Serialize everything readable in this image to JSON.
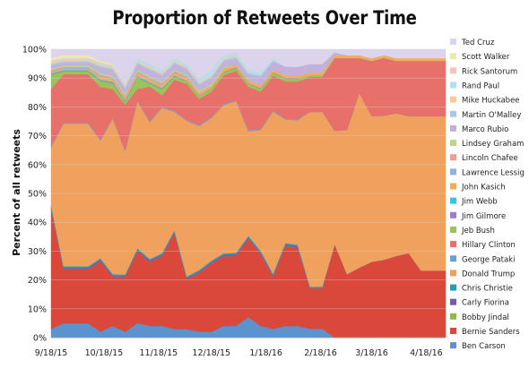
{
  "chart_data": {
    "type": "area",
    "stacked": true,
    "title": "Proportion of Retweets Over Time",
    "ylabel": "Percent of all retweets",
    "xlabel": "",
    "ylim": [
      0,
      100
    ],
    "y_ticks": [
      "0%",
      "10%",
      "20%",
      "30%",
      "40%",
      "50%",
      "60%",
      "70%",
      "80%",
      "90%",
      "100%"
    ],
    "x_ticks": [
      {
        "label": "9/18/15",
        "t": 0
      },
      {
        "label": "10/18/15",
        "t": 30
      },
      {
        "label": "11/18/15",
        "t": 61
      },
      {
        "label": "12/18/15",
        "t": 91
      },
      {
        "label": "1/18/16",
        "t": 122
      },
      {
        "label": "2/18/16",
        "t": 153
      },
      {
        "label": "3/18/16",
        "t": 182
      },
      {
        "label": "4/18/16",
        "t": 213
      }
    ],
    "grid": true,
    "legend_position": "right",
    "x": [
      0,
      7,
      14,
      21,
      28,
      35,
      42,
      49,
      56,
      63,
      70,
      77,
      84,
      91,
      98,
      105,
      112,
      119,
      126,
      133,
      140,
      147,
      154,
      161,
      168,
      175,
      182,
      189,
      196,
      203,
      210,
      217,
      224
    ],
    "series": [
      {
        "name": "Ben Carson",
        "color": "#5b93cf",
        "values": [
          3,
          5,
          5,
          5,
          2,
          4,
          2,
          5,
          4,
          4,
          3,
          3,
          2,
          2,
          4,
          4,
          7,
          4,
          3,
          4,
          4,
          3,
          3,
          0,
          0,
          0,
          0,
          0,
          0,
          0,
          0,
          0,
          0
        ]
      },
      {
        "name": "Bernie Sanders",
        "color": "#d9483b",
        "values": [
          42,
          19,
          19,
          19,
          24,
          17,
          19,
          25,
          22,
          24,
          34,
          18,
          20,
          24,
          24,
          24,
          27,
          25,
          18,
          28,
          27,
          14,
          14,
          32,
          22,
          24,
          26,
          27,
          28,
          29,
          23,
          23,
          23
        ]
      },
      {
        "name": "Bobby Jindal",
        "color": "#8fb94b",
        "values": [
          0,
          0,
          0,
          0,
          0,
          0,
          0,
          0,
          0,
          0,
          0,
          0,
          0,
          0,
          0,
          0,
          0,
          0,
          0,
          0,
          0,
          0,
          0,
          0,
          0,
          0,
          0,
          0,
          0,
          0,
          0,
          0,
          0
        ]
      },
      {
        "name": "Carly Fiorina",
        "color": "#7a5aa6",
        "values": [
          0.5,
          0.5,
          0.5,
          0.5,
          0.5,
          0.5,
          0.5,
          0.5,
          0.5,
          0.5,
          0.5,
          0.5,
          0.5,
          0.5,
          0.5,
          0.5,
          0.5,
          0.5,
          0.5,
          0.5,
          0.5,
          0,
          0,
          0,
          0,
          0,
          0,
          0,
          0,
          0,
          0,
          0,
          0
        ]
      },
      {
        "name": "Chris Christie",
        "color": "#2a9db0",
        "values": [
          0.5,
          0.5,
          0.5,
          0.5,
          0.5,
          0.5,
          0.5,
          0.5,
          0.5,
          0.5,
          0.5,
          0.5,
          0.5,
          0.5,
          0.5,
          0.5,
          0.5,
          0.5,
          0.5,
          0.5,
          0.5,
          0.5,
          0.5,
          0,
          0,
          0,
          0,
          0,
          0,
          0,
          0,
          0,
          0
        ]
      },
      {
        "name": "Donald Trump",
        "color": "#f0a15d",
        "values": [
          20,
          50,
          50,
          50,
          40,
          54,
          43,
          51,
          47,
          50,
          42,
          56,
          49,
          50,
          51,
          52,
          36,
          42,
          56,
          43,
          43,
          60,
          60,
          39,
          50,
          60,
          50,
          50,
          49,
          47,
          53,
          53,
          53
        ]
      },
      {
        "name": "George Pataki",
        "color": "#6d9fd4",
        "values": [
          0.3,
          0.3,
          0.3,
          0.3,
          0.3,
          0.3,
          0.3,
          0.3,
          0.3,
          0.3,
          0.3,
          0.3,
          0.3,
          0.3,
          0.3,
          0.3,
          0.3,
          0.3,
          0.3,
          0.3,
          0.3,
          0,
          0,
          0,
          0,
          0,
          0,
          0,
          0,
          0,
          0,
          0,
          0
        ]
      },
      {
        "name": "Hillary Clinton",
        "color": "#e8706a",
        "values": [
          20,
          17,
          17,
          17,
          18,
          10,
          16,
          4,
          12,
          4,
          11,
          13,
          9,
          9,
          10,
          10,
          15,
          13,
          12,
          13,
          13,
          12,
          12,
          25,
          25,
          12,
          19,
          20,
          18,
          19,
          19,
          19,
          19
        ]
      },
      {
        "name": "Jeb Bush",
        "color": "#9cc35a",
        "values": [
          5,
          1,
          1,
          1,
          2,
          2,
          1,
          4,
          1,
          2,
          1,
          1,
          1,
          1,
          1,
          1,
          1,
          1,
          1,
          1,
          1,
          0.5,
          0.5,
          0,
          0,
          0,
          0,
          0,
          0,
          0,
          0,
          0,
          0
        ]
      },
      {
        "name": "Jim Gilmore",
        "color": "#9a80c0",
        "values": [
          0.2,
          0.2,
          0.2,
          0.2,
          0.2,
          0.2,
          0.2,
          0.2,
          0.2,
          0.2,
          0.2,
          0.2,
          0.2,
          0.2,
          0.2,
          0.2,
          0.2,
          0.2,
          0.2,
          0.2,
          0.2,
          0,
          0,
          0,
          0,
          0,
          0,
          0,
          0,
          0,
          0,
          0,
          0
        ]
      },
      {
        "name": "Jim Webb",
        "color": "#3fc2da",
        "values": [
          0.3,
          0.3,
          0.3,
          0.3,
          0.3,
          0.3,
          0.3,
          0.3,
          0.3,
          0.3,
          0.3,
          0,
          0,
          0,
          0,
          0,
          0,
          0,
          0,
          0,
          0,
          0,
          0,
          0,
          0,
          0,
          0,
          0,
          0,
          0,
          0,
          0,
          0
        ]
      },
      {
        "name": "John Kasich",
        "color": "#f3ad5a",
        "values": [
          0.5,
          0.5,
          0.5,
          0.5,
          1,
          1,
          1,
          1,
          1,
          1,
          1,
          1,
          1,
          1,
          1,
          1,
          1,
          1,
          1,
          1,
          1,
          1,
          1,
          1,
          1,
          1,
          1,
          1,
          1,
          1,
          1,
          1,
          1
        ]
      },
      {
        "name": "Lawrence Lessig",
        "color": "#8fb3db",
        "values": [
          0.3,
          0.3,
          0.3,
          0.3,
          0.3,
          0.3,
          0.3,
          0.3,
          0.3,
          0.3,
          0.3,
          0.3,
          0,
          0,
          0,
          0,
          0,
          0,
          0,
          0,
          0,
          0,
          0,
          0,
          0,
          0,
          0,
          0,
          0,
          0,
          0,
          0,
          0
        ]
      },
      {
        "name": "Lincoln Chafee",
        "color": "#f19b98",
        "values": [
          0.3,
          0.3,
          0.3,
          0.3,
          0.3,
          0.3,
          0.3,
          0.3,
          0.3,
          0.3,
          0.3,
          0.3,
          0,
          0,
          0,
          0,
          0,
          0,
          0,
          0,
          0,
          0,
          0,
          0,
          0,
          0,
          0,
          0,
          0,
          0,
          0,
          0,
          0
        ]
      },
      {
        "name": "Lindsey Graham",
        "color": "#b8d78c",
        "values": [
          0.5,
          0.5,
          0.5,
          0.5,
          0.5,
          0.5,
          0.5,
          0.5,
          0.5,
          0.5,
          0.5,
          0.5,
          0.5,
          0.5,
          0.5,
          0,
          0,
          0,
          0,
          0,
          0,
          0,
          0,
          0,
          0,
          0,
          0,
          0,
          0,
          0,
          0,
          0,
          0
        ]
      },
      {
        "name": "Marco Rubio",
        "color": "#c2b2db",
        "values": [
          1,
          1,
          1,
          1,
          2,
          2,
          2,
          2,
          2,
          2,
          2,
          2,
          2,
          2,
          2,
          2,
          2,
          3,
          3,
          3,
          3,
          3,
          3,
          1,
          0,
          0,
          0,
          0,
          0,
          0,
          0,
          0,
          0
        ]
      },
      {
        "name": "Martin O'Malley",
        "color": "#a9c7e6",
        "values": [
          0.5,
          0.5,
          0.5,
          0.5,
          0.5,
          0.5,
          0.5,
          0.5,
          0.5,
          0.5,
          0.5,
          0.5,
          0.5,
          0.5,
          0.5,
          0.5,
          0.5,
          0.5,
          0,
          0,
          0,
          0,
          0,
          0,
          0,
          0,
          0,
          0,
          0,
          0,
          0,
          0,
          0
        ]
      },
      {
        "name": "Mike Huckabee",
        "color": "#f8c99a",
        "values": [
          0.5,
          0.5,
          0.5,
          0.5,
          0.5,
          0.5,
          0.5,
          0.5,
          0.5,
          0.5,
          0.5,
          0.5,
          0.5,
          0.5,
          0.5,
          0.5,
          0,
          0,
          0,
          0,
          0,
          0,
          0,
          0,
          0,
          0,
          0,
          0,
          0,
          0,
          0,
          0,
          0
        ]
      },
      {
        "name": "Rand Paul",
        "color": "#b3dff0",
        "values": [
          0.5,
          0.5,
          0.5,
          0.5,
          0.5,
          0.5,
          0.5,
          1,
          1,
          1,
          1,
          1,
          1,
          2,
          1,
          1,
          1,
          1,
          1,
          0,
          0,
          0,
          0,
          0,
          0,
          0,
          0,
          0,
          0,
          0,
          0,
          0,
          0
        ]
      },
      {
        "name": "Rick Santorum",
        "color": "#f6c2c0",
        "values": [
          0.2,
          0.2,
          0.2,
          0.2,
          0.2,
          0.2,
          0.2,
          0.2,
          0.2,
          0.2,
          0.2,
          0.2,
          0.2,
          0.2,
          0.2,
          0.2,
          0.2,
          0,
          0,
          0,
          0,
          0,
          0,
          0,
          0,
          0,
          0,
          0,
          0,
          0,
          0,
          0,
          0
        ]
      },
      {
        "name": "Scott Walker",
        "color": "#f0e9a8",
        "values": [
          1,
          1,
          1,
          1,
          0.5,
          0.5,
          0,
          0,
          0,
          0,
          0,
          0,
          0,
          0,
          0,
          0,
          0,
          0,
          0,
          0,
          0,
          0,
          0,
          0,
          0,
          0,
          0,
          0,
          0,
          0,
          0,
          0,
          0
        ]
      },
      {
        "name": "Ted Cruz",
        "color": "#dcd3ec",
        "values": [
          3,
          2,
          2,
          2,
          4,
          5,
          12,
          3,
          5,
          7,
          3,
          5,
          10,
          7,
          2,
          1,
          7,
          8,
          3,
          6,
          6,
          5,
          5,
          1,
          2,
          2,
          3,
          2,
          3,
          3,
          3,
          3,
          3
        ]
      }
    ]
  }
}
